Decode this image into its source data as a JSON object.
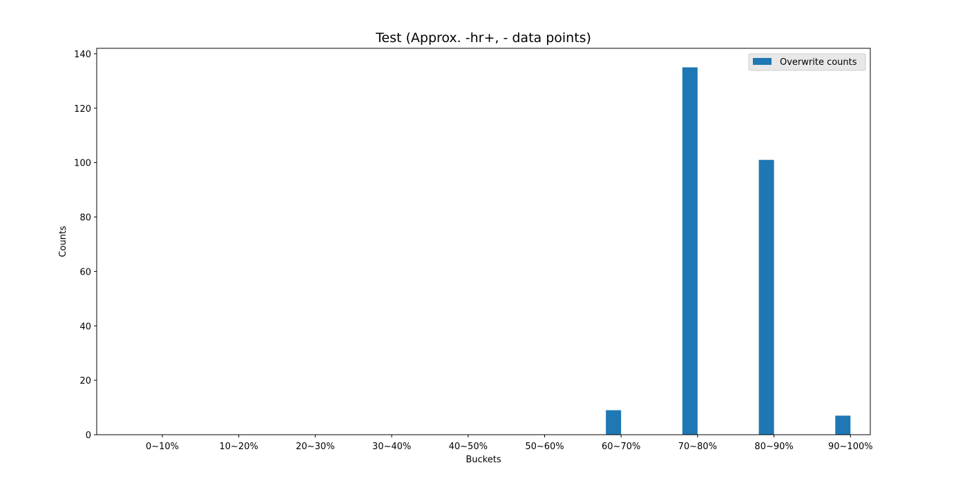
{
  "chart_data": {
    "type": "bar",
    "title": "Test (Approx. -hr+, - data points)",
    "xlabel": "Buckets",
    "ylabel": "Counts",
    "categories": [
      "0~10%",
      "10~20%",
      "20~30%",
      "30~40%",
      "40~50%",
      "50~60%",
      "60~70%",
      "70~80%",
      "80~90%",
      "90~100%"
    ],
    "series": [
      {
        "name": "Overwrite counts",
        "color": "#1f77b4",
        "values": [
          0,
          0,
          0,
          0,
          0,
          0,
          9,
          135,
          101,
          7
        ]
      }
    ],
    "ylim": [
      0,
      142
    ],
    "yticks": [
      0,
      20,
      40,
      60,
      80,
      100,
      120,
      140
    ],
    "legend": "top-right",
    "grid": false
  }
}
